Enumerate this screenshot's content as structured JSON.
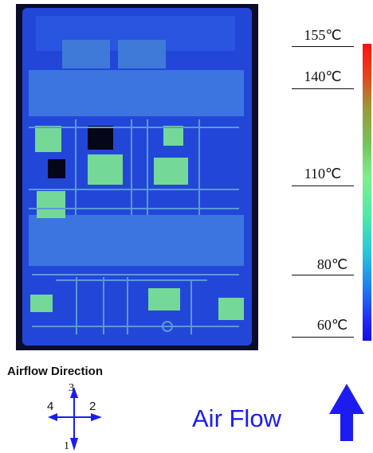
{
  "thermal_image": {
    "color_low": "#1f3fd6",
    "color_mid": "#7ef08c",
    "color_high": "#ff1010"
  },
  "scale": {
    "labels": [
      "155℃",
      "140℃",
      "110℃",
      "80℃",
      "60℃"
    ],
    "colors": [
      "#ff1010",
      "#7ef08c",
      "#1010e8"
    ]
  },
  "airflow": {
    "title": "Airflow Direction",
    "directions": {
      "down": "1",
      "right": "2",
      "up": "3",
      "left": "4"
    },
    "label": "Air Flow",
    "arrow_color": "#1c1cf0"
  }
}
